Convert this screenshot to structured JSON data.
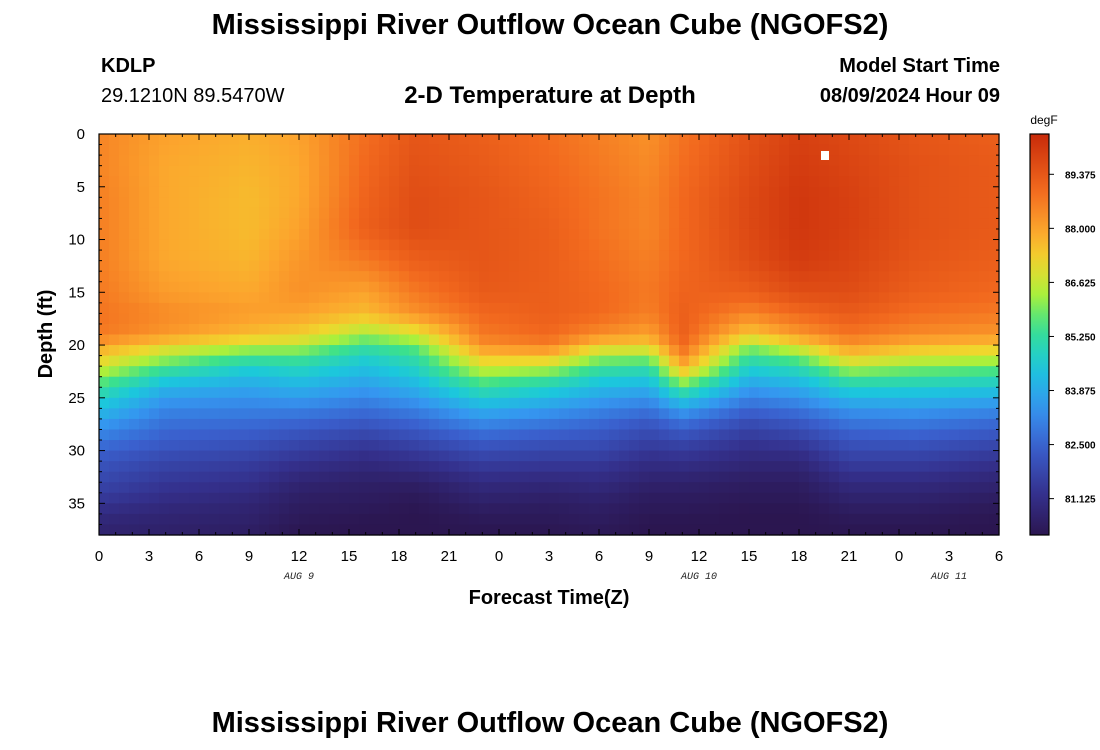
{
  "header": {
    "title": "Mississippi River Outflow Ocean Cube (NGOFS2)",
    "station_id": "KDLP",
    "station_coords": "29.1210N  89.5470W",
    "subtitle": "2-D Temperature at Depth",
    "model_start_label": "Model Start Time",
    "model_start_value": "08/09/2024 Hour 09"
  },
  "footer": {
    "title": "Mississippi River Outflow Ocean Cube (NGOFS2)"
  },
  "colors": {
    "low": "#2b1650",
    "high": "#c82a0a"
  },
  "chart_data": {
    "type": "heatmap",
    "title": "2-D Temperature at Depth",
    "xlabel": "Forecast Time(Z)",
    "ylabel": "Depth (ft)",
    "x_range_hours": [
      0,
      54
    ],
    "x_tick_labels": [
      "0",
      "3",
      "6",
      "9",
      "12",
      "15",
      "18",
      "21",
      "0",
      "3",
      "6",
      "9",
      "12",
      "15",
      "18",
      "21",
      "0",
      "3",
      "6"
    ],
    "date_labels": [
      {
        "label": "AUG 9",
        "hour": 12
      },
      {
        "label": "AUG 10",
        "hour": 36
      },
      {
        "label": "AUG 11",
        "hour": 51
      }
    ],
    "ylim": [
      0,
      38
    ],
    "y_ticks": [
      0,
      5,
      10,
      15,
      20,
      25,
      30,
      35
    ],
    "colorbar": {
      "unit": "degF",
      "min": 80.2,
      "max": 90.4,
      "tick_values": [
        89.375,
        88.0,
        86.625,
        85.25,
        83.875,
        82.5,
        81.125
      ],
      "tick_labels": [
        "89.375",
        "88.000",
        "86.625",
        "85.250",
        "83.875",
        "82.500",
        "81.125"
      ]
    },
    "temperature_profiles": {
      "depth_ft": [
        0,
        3,
        6,
        9,
        12,
        15,
        17,
        19,
        20,
        21,
        22,
        23,
        24,
        25,
        26,
        27,
        28,
        29,
        30,
        31,
        32,
        33,
        34,
        35,
        36,
        37,
        38
      ],
      "hours": [
        0,
        4,
        9,
        12,
        16,
        19,
        23,
        27,
        30,
        33,
        35,
        39,
        42,
        45,
        49,
        54
      ],
      "values": [
        [
          88.5,
          88.5,
          88.6,
          88.6,
          88.6,
          88.7,
          88.8,
          88.7,
          88.0,
          87.4,
          86.8,
          86.1,
          85.4,
          84.8,
          84.3,
          83.8,
          83.3,
          82.9,
          82.5,
          82.2,
          82.0,
          81.8,
          81.6,
          81.3,
          81.0,
          80.8,
          80.7
        ],
        [
          88.0,
          87.9,
          87.9,
          87.9,
          87.9,
          88.1,
          88.4,
          88.2,
          87.2,
          86.4,
          85.6,
          84.8,
          84.1,
          83.6,
          83.2,
          82.9,
          82.6,
          82.4,
          82.1,
          81.8,
          81.6,
          81.4,
          81.2,
          81.0,
          80.8,
          80.7,
          80.6
        ],
        [
          87.8,
          87.7,
          87.6,
          87.6,
          87.7,
          87.9,
          88.1,
          87.6,
          86.6,
          85.6,
          84.8,
          84.2,
          83.8,
          83.4,
          83.1,
          82.8,
          82.5,
          82.2,
          81.9,
          81.6,
          81.4,
          81.2,
          81.0,
          80.8,
          80.7,
          80.6,
          80.5
        ],
        [
          88.0,
          87.9,
          87.9,
          88.0,
          88.2,
          88.3,
          88.0,
          87.3,
          86.5,
          85.6,
          85.0,
          84.5,
          84.0,
          83.6,
          83.1,
          82.7,
          82.3,
          81.9,
          81.6,
          81.3,
          81.0,
          80.8,
          80.6,
          80.5,
          80.4,
          80.3,
          80.2
        ],
        [
          88.9,
          89.0,
          89.1,
          89.2,
          88.7,
          88.0,
          87.6,
          86.3,
          85.4,
          84.8,
          84.4,
          84.0,
          83.6,
          83.2,
          82.8,
          82.4,
          82.0,
          81.6,
          81.3,
          81.0,
          80.8,
          80.6,
          80.5,
          80.4,
          80.3,
          80.2,
          80.2
        ],
        [
          89.4,
          89.5,
          89.6,
          89.6,
          89.2,
          88.7,
          88.3,
          86.8,
          85.9,
          85.3,
          84.9,
          84.5,
          84.0,
          83.6,
          83.1,
          82.7,
          82.3,
          81.9,
          81.5,
          81.2,
          80.9,
          80.6,
          80.4,
          80.3,
          80.2,
          80.2,
          80.2
        ],
        [
          89.2,
          89.3,
          89.4,
          89.4,
          89.4,
          89.3,
          89.0,
          88.7,
          88.3,
          87.5,
          86.8,
          86.0,
          85.3,
          84.6,
          84.0,
          83.4,
          82.9,
          82.4,
          82.0,
          81.6,
          81.3,
          81.0,
          80.8,
          80.6,
          80.4,
          80.3,
          80.2
        ],
        [
          88.9,
          89.0,
          89.1,
          89.2,
          89.2,
          89.2,
          89.2,
          89.0,
          88.6,
          87.6,
          86.6,
          85.6,
          84.8,
          84.2,
          83.6,
          83.1,
          82.6,
          82.2,
          81.8,
          81.5,
          81.2,
          80.9,
          80.7,
          80.5,
          80.4,
          80.3,
          80.2
        ],
        [
          88.6,
          88.7,
          88.8,
          88.8,
          88.9,
          89.0,
          89.0,
          88.4,
          87.4,
          86.3,
          85.5,
          84.8,
          84.2,
          83.7,
          83.2,
          82.8,
          82.4,
          82.1,
          81.8,
          81.5,
          81.2,
          81.0,
          80.8,
          80.6,
          80.5,
          80.4,
          80.3
        ],
        [
          88.3,
          88.4,
          88.5,
          88.5,
          88.6,
          88.7,
          88.6,
          88.0,
          87.3,
          86.2,
          85.3,
          84.6,
          84.0,
          83.4,
          82.9,
          82.4,
          82.0,
          81.7,
          81.4,
          81.1,
          80.9,
          80.7,
          80.5,
          80.4,
          80.3,
          80.2,
          80.2
        ],
        [
          88.8,
          88.9,
          89.0,
          89.0,
          89.0,
          89.1,
          89.2,
          89.2,
          89.0,
          88.5,
          87.8,
          86.8,
          85.6,
          84.6,
          83.7,
          83.0,
          82.4,
          81.9,
          81.5,
          81.2,
          80.9,
          80.7,
          80.5,
          80.4,
          80.3,
          80.2,
          80.2
        ],
        [
          89.5,
          89.6,
          89.7,
          89.7,
          89.6,
          89.2,
          88.5,
          87.4,
          86.2,
          85.4,
          84.8,
          84.2,
          83.6,
          83.1,
          82.6,
          82.1,
          81.7,
          81.4,
          81.1,
          80.9,
          80.7,
          80.5,
          80.4,
          80.3,
          80.2,
          80.2,
          80.2
        ],
        [
          89.9,
          90.0,
          90.1,
          90.1,
          90.0,
          89.6,
          89.0,
          88.2,
          87.1,
          86.0,
          85.2,
          84.5,
          83.9,
          83.4,
          82.9,
          82.4,
          82.0,
          81.6,
          81.2,
          80.9,
          80.7,
          80.5,
          80.4,
          80.3,
          80.2,
          80.2,
          80.2
        ],
        [
          89.7,
          89.8,
          89.9,
          89.9,
          89.8,
          89.6,
          89.3,
          88.8,
          88.2,
          87.4,
          86.5,
          85.6,
          84.8,
          84.1,
          83.5,
          83.0,
          82.6,
          82.2,
          81.9,
          81.6,
          81.3,
          81.0,
          80.8,
          80.6,
          80.4,
          80.3,
          80.2
        ],
        [
          89.4,
          89.5,
          89.5,
          89.5,
          89.4,
          89.2,
          88.9,
          88.4,
          87.7,
          86.9,
          86.1,
          85.4,
          84.7,
          84.1,
          83.6,
          83.1,
          82.7,
          82.3,
          81.9,
          81.6,
          81.3,
          81.0,
          80.8,
          80.6,
          80.4,
          80.3,
          80.2
        ],
        [
          89.2,
          89.3,
          89.3,
          89.3,
          89.2,
          89.0,
          88.7,
          88.2,
          87.5,
          86.7,
          85.9,
          85.2,
          84.5,
          83.9,
          83.3,
          82.8,
          82.4,
          82.0,
          81.6,
          81.3,
          81.0,
          80.8,
          80.6,
          80.4,
          80.3,
          80.2,
          80.2
        ]
      ]
    }
  }
}
